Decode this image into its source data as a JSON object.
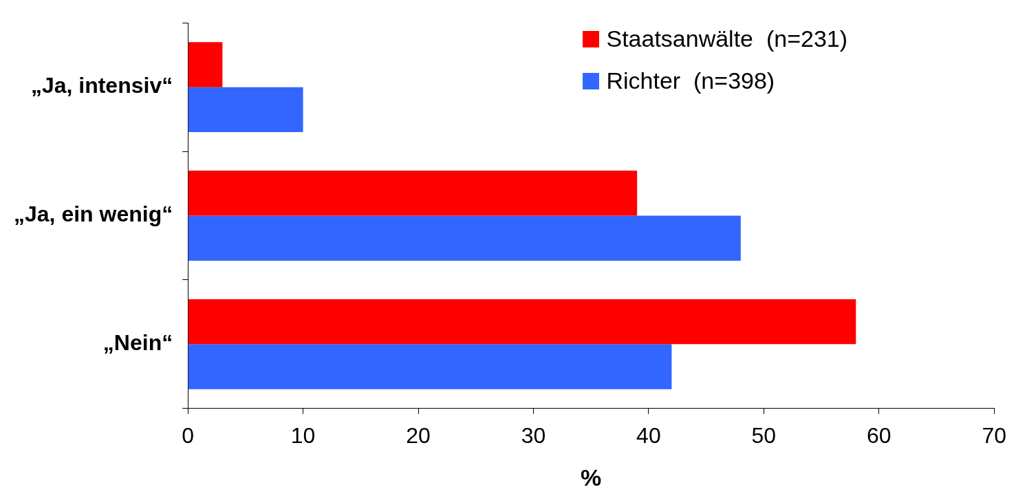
{
  "chart_data": {
    "type": "bar",
    "orientation": "horizontal",
    "xlabel": "%",
    "categories": [
      "„Ja, intensiv“",
      "„Ja, ein wenig“",
      "„Nein“"
    ],
    "series": [
      {
        "name": "Staatsanwälte  (n=231)",
        "color": "#ff0000",
        "values": [
          3,
          39,
          58
        ]
      },
      {
        "name": "Richter  (n=398)",
        "color": "#3366ff",
        "values": [
          10,
          48,
          42
        ]
      }
    ],
    "xlim": [
      0,
      70
    ],
    "xticks": [
      0,
      10,
      20,
      30,
      40,
      50,
      60,
      70
    ],
    "grid": false,
    "legend": "top right"
  }
}
